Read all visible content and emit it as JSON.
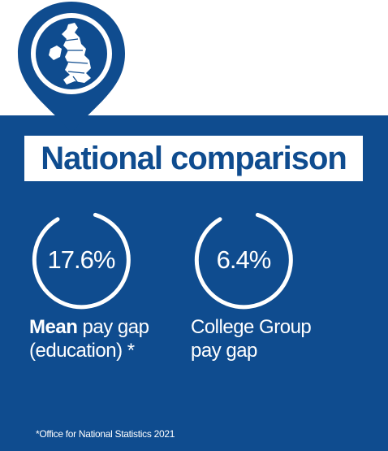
{
  "header": {
    "title": "National comparison"
  },
  "stats": [
    {
      "value": "17.6%",
      "caption_bold": "Mean",
      "caption_line1_rest": " pay gap",
      "caption_line2": "(education) *"
    },
    {
      "value": "6.4%",
      "caption_line1": "College Group",
      "caption_line2": "pay gap"
    }
  ],
  "footnote": "*Office for National Statistics 2021",
  "icons": {
    "pin": "map-pin-icon",
    "map": "uk-map-icon"
  },
  "colors": {
    "brand_blue": "#0f4c8f",
    "white": "#ffffff"
  }
}
